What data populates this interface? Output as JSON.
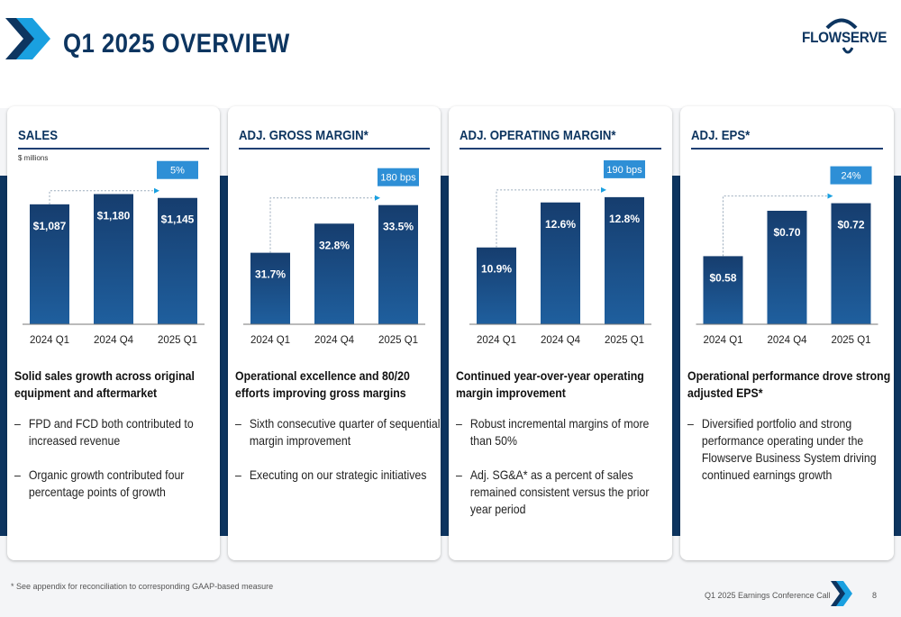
{
  "page": {
    "title": "Q1 2025 OVERVIEW",
    "brand": "FLOWSERVE",
    "footnote": "* See appendix for reconciliation to corresponding GAAP-based measure",
    "footer_source": "Q1 2025 Earnings Conference Call",
    "page_number": "8",
    "colors": {
      "navy": "#0d3560",
      "bar_light": "#1f5f9e",
      "bar_dark": "#163d6e",
      "callout": "#2e8fd6",
      "accent": "#1aa0e0"
    }
  },
  "cards": [
    {
      "title": "SALES",
      "unit": "$ millions",
      "headline": "Solid sales growth across original equipment and aftermarket",
      "bullets": [
        "FPD and FCD both contributed to increased revenue",
        "Organic growth contributed four percentage points of growth"
      ]
    },
    {
      "title": "ADJ. GROSS MARGIN*",
      "headline": "Operational excellence and 80/20 efforts improving gross margins",
      "bullets": [
        "Sixth consecutive quarter of sequential margin improvement",
        "Executing on our strategic initiatives"
      ]
    },
    {
      "title": "ADJ. OPERATING MARGIN*",
      "headline": "Continued year-over-year operating margin improvement",
      "bullets": [
        "Robust incremental margins of more than 50%",
        "Adj. SG&A* as a percent of sales remained consistent versus the prior year period"
      ]
    },
    {
      "title": "ADJ. EPS*",
      "headline": "Operational performance drove strong adjusted EPS*",
      "bullets": [
        "Diversified portfolio and strong performance operating under the Flowserve Business System driving continued earnings growth"
      ]
    }
  ],
  "chart_data": [
    {
      "type": "bar",
      "categories": [
        "2024 Q1",
        "2024 Q4",
        "2025 Q1"
      ],
      "values": [
        1087,
        1180,
        1145
      ],
      "value_labels": [
        "$1,087",
        "$1,180",
        "$1,145"
      ],
      "change_callout": "5%",
      "ylim": [
        0,
        1200
      ]
    },
    {
      "type": "bar",
      "categories": [
        "2024 Q1",
        "2024 Q4",
        "2025 Q1"
      ],
      "values": [
        31.7,
        32.8,
        33.5
      ],
      "value_labels": [
        "31.7%",
        "32.8%",
        "33.5%"
      ],
      "change_callout": "180 bps",
      "ylim": [
        29.0,
        34.0
      ]
    },
    {
      "type": "bar",
      "categories": [
        "2024 Q1",
        "2024 Q4",
        "2025 Q1"
      ],
      "values": [
        10.9,
        12.6,
        12.8
      ],
      "value_labels": [
        "10.9%",
        "12.6%",
        "12.8%"
      ],
      "change_callout": "190 bps",
      "ylim": [
        8.0,
        13.0
      ]
    },
    {
      "type": "bar",
      "categories": [
        "2024 Q1",
        "2024 Q4",
        "2025 Q1"
      ],
      "values": [
        0.58,
        0.7,
        0.72
      ],
      "value_labels": [
        "$0.58",
        "$0.70",
        "$0.72"
      ],
      "change_callout": "24%",
      "ylim": [
        0.4,
        0.75
      ]
    }
  ]
}
